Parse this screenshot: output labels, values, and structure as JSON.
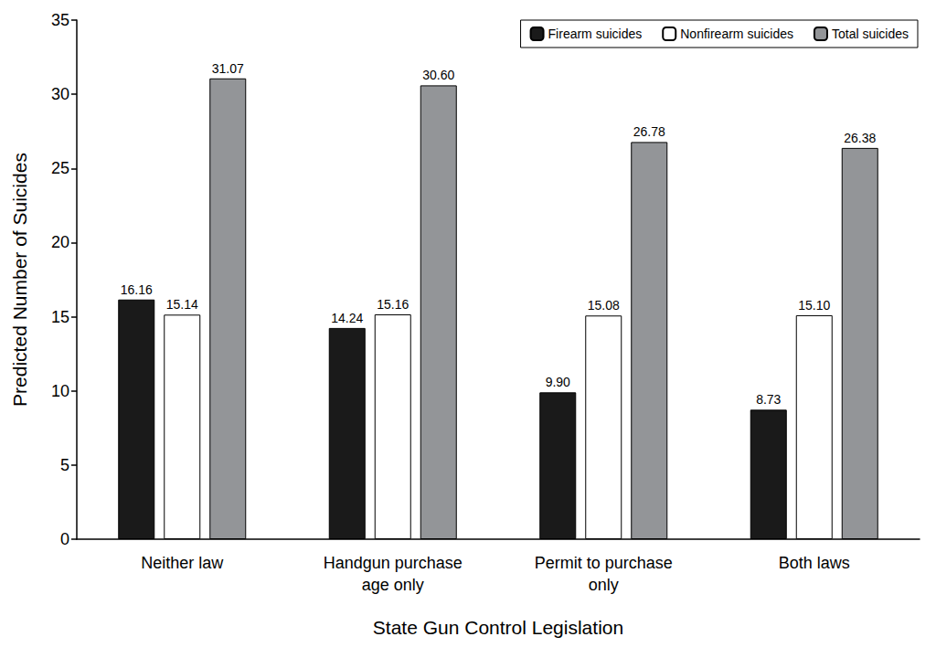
{
  "chart_data": {
    "type": "bar",
    "x_label": "State Gun Control Legislation",
    "y_label": "Predicted Number of Suicides",
    "categories": [
      "Neither law",
      "Handgun purchase\nage only",
      "Permit to purchase\nonly",
      "Both laws"
    ],
    "series": [
      {
        "name": "Firearm suicides",
        "color": "#1a1a1a",
        "values": [
          16.16,
          14.24,
          9.9,
          8.73
        ],
        "value_labels": [
          "16.16",
          "14.24",
          "9.90",
          "8.73"
        ]
      },
      {
        "name": "Nonfirearm suicides",
        "color": "#ffffff",
        "values": [
          15.14,
          15.16,
          15.08,
          15.1
        ],
        "value_labels": [
          "15.14",
          "15.16",
          "15.08",
          "15.10"
        ]
      },
      {
        "name": "Total suicides",
        "color": "#939598",
        "values": [
          31.07,
          30.6,
          26.78,
          26.38
        ],
        "value_labels": [
          "31.07",
          "30.60",
          "26.78",
          "26.38"
        ]
      }
    ],
    "ylim": [
      0,
      35
    ],
    "yticks": [
      0,
      5,
      10,
      15,
      20,
      25,
      30,
      35
    ],
    "grid": false,
    "legend": "upper right",
    "data_labels": true
  }
}
